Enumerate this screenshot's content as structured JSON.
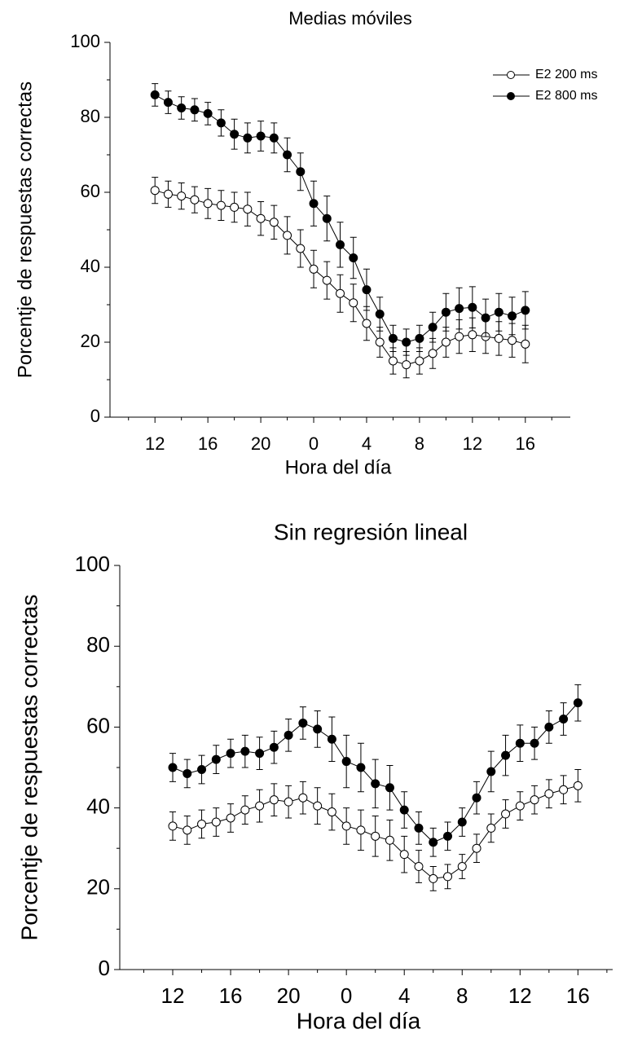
{
  "chart_data": [
    {
      "type": "line",
      "title": "Medias móviles",
      "x_label": "Hora del día",
      "y_label": "Porcentje de respuestas correctas",
      "x": [
        12,
        13,
        14,
        15,
        16,
        17,
        18,
        19,
        20,
        21,
        22,
        23,
        24,
        25,
        26,
        27,
        28,
        29,
        30,
        31,
        32,
        33,
        34,
        35,
        36,
        37,
        38,
        39,
        40
      ],
      "series": [
        {
          "name": "E2 200 ms",
          "color": "#000000",
          "marker_fill": "#ffffff",
          "values": [
            60.5,
            59.5,
            59,
            58,
            57,
            56.5,
            56,
            55.5,
            53,
            52,
            48.5,
            45,
            39.5,
            36.5,
            33,
            30.5,
            25,
            20,
            15,
            14,
            15,
            17,
            20,
            21.5,
            22,
            21.5,
            21,
            20.5,
            19.5
          ],
          "errors": [
            3.5,
            3.5,
            3.5,
            3.5,
            4,
            4,
            4,
            4.5,
            4.5,
            4.5,
            5,
            5,
            5,
            5,
            5,
            5,
            4.5,
            4,
            3.5,
            3.5,
            3.5,
            4,
            4,
            4.5,
            4.5,
            4.5,
            4.5,
            4.5,
            5
          ]
        },
        {
          "name": "E2 800 ms",
          "color": "#000000",
          "marker_fill": "#000000",
          "values": [
            86,
            84,
            82.5,
            82,
            81,
            78.5,
            75.5,
            74.5,
            75,
            74.5,
            70,
            65.5,
            57,
            53,
            46,
            42.5,
            34,
            27.5,
            21,
            20,
            21,
            24,
            28,
            29,
            29.3,
            26.5,
            28,
            27,
            28.5
          ],
          "errors": [
            3,
            3,
            3,
            3,
            3,
            3.5,
            4,
            4,
            4,
            4,
            4.5,
            5,
            6,
            6,
            6,
            5.5,
            5.5,
            4.5,
            3.5,
            3.5,
            3.5,
            4,
            5,
            5.5,
            5.5,
            5,
            5,
            5,
            5
          ]
        }
      ],
      "xlim": [
        8.6,
        43.4
      ],
      "xticks": [
        {
          "value": 12,
          "label": "12"
        },
        {
          "value": 16,
          "label": "16"
        },
        {
          "value": 20,
          "label": "20"
        },
        {
          "value": 24,
          "label": "0"
        },
        {
          "value": 28,
          "label": "4"
        },
        {
          "value": 32,
          "label": "8"
        },
        {
          "value": 36,
          "label": "12"
        },
        {
          "value": 40,
          "label": "16"
        }
      ],
      "xminorticks": [
        10,
        14,
        18,
        22,
        26,
        30,
        34,
        38,
        42
      ],
      "ylim": [
        0,
        100
      ],
      "yticks": [
        0,
        20,
        40,
        60,
        80,
        100
      ],
      "yminorticks": [
        10,
        30,
        50,
        70,
        90
      ],
      "legend": "upper right"
    },
    {
      "type": "line",
      "title": "Sin regresión lineal",
      "x_label": "Hora del día",
      "y_label": "Porcentje de respuestas correctas",
      "x": [
        12,
        13,
        14,
        15,
        16,
        17,
        18,
        19,
        20,
        21,
        22,
        23,
        24,
        25,
        26,
        27,
        28,
        29,
        30,
        31,
        32,
        33,
        34,
        35,
        36,
        37,
        38,
        39,
        40
      ],
      "series": [
        {
          "color": "#000000",
          "marker_fill": "#ffffff",
          "values": [
            35.5,
            34.5,
            36,
            36.5,
            37.5,
            39.5,
            40.5,
            42,
            41.5,
            42.5,
            40.5,
            39,
            35.5,
            34.5,
            33,
            32,
            28.5,
            25.5,
            22.5,
            23,
            25.5,
            30,
            35,
            38.5,
            40.5,
            42,
            43.5,
            44.5,
            45.5
          ],
          "errors": [
            3.5,
            3.5,
            3.5,
            3.5,
            3.5,
            3.5,
            4,
            4,
            4,
            4,
            4.5,
            4.5,
            4.5,
            5,
            5,
            5,
            4.5,
            4,
            3,
            3,
            3,
            3.5,
            3.5,
            3.5,
            3.5,
            3.5,
            3.5,
            3.5,
            4
          ]
        },
        {
          "color": "#000000",
          "marker_fill": "#000000",
          "values": [
            50,
            48.5,
            49.5,
            52,
            53.5,
            54,
            53.5,
            55,
            58,
            61,
            59.5,
            57,
            51.5,
            50,
            46,
            45,
            39.5,
            35,
            31.5,
            33,
            36.5,
            42.5,
            49,
            53,
            56,
            56,
            60,
            62,
            66
          ],
          "errors": [
            3.5,
            3.5,
            3.5,
            3.5,
            3.5,
            4,
            4,
            4,
            4,
            4,
            4.5,
            5.5,
            6.5,
            6,
            6,
            5.5,
            4.5,
            4,
            3.5,
            3.5,
            3.5,
            4,
            5,
            5,
            4.5,
            4,
            4,
            4,
            4.5
          ]
        }
      ],
      "xlim": [
        8.34,
        42.4
      ],
      "xticks": [
        {
          "value": 12,
          "label": "12"
        },
        {
          "value": 16,
          "label": "16"
        },
        {
          "value": 20,
          "label": "20"
        },
        {
          "value": 24,
          "label": "0"
        },
        {
          "value": 28,
          "label": "4"
        },
        {
          "value": 32,
          "label": "8"
        },
        {
          "value": 36,
          "label": "12"
        },
        {
          "value": 40,
          "label": "16"
        }
      ],
      "xminorticks": [
        10,
        14,
        18,
        22,
        26,
        30,
        34,
        38,
        42
      ],
      "ylim": [
        0,
        100
      ],
      "yticks": [
        0,
        20,
        40,
        60,
        80,
        100
      ],
      "yminorticks": [
        10,
        30,
        50,
        70,
        90
      ]
    }
  ]
}
